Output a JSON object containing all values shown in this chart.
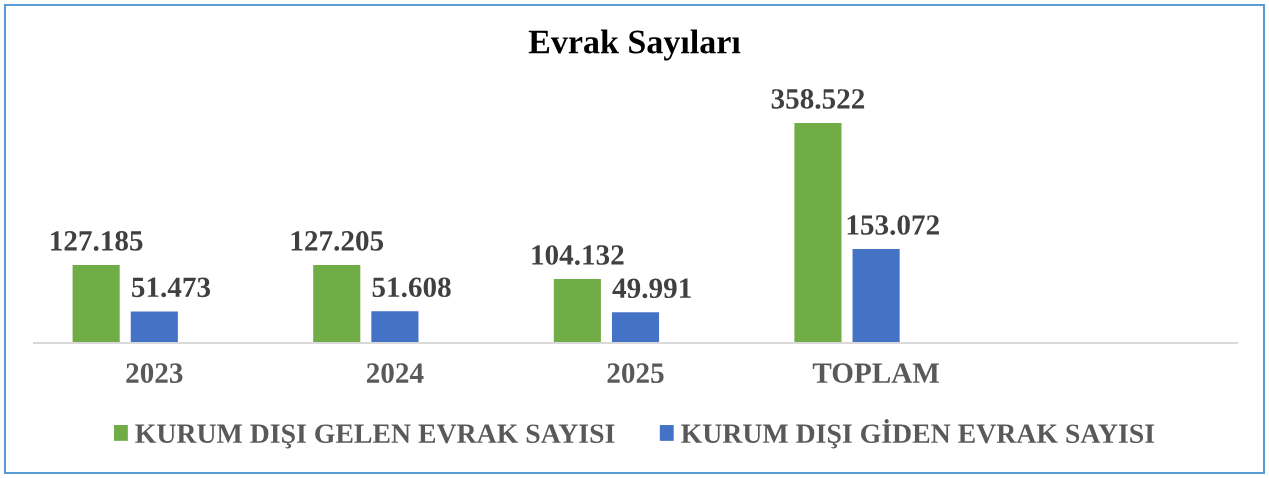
{
  "chart_data": {
    "type": "bar",
    "title": "Evrak Sayıları",
    "categories": [
      "2023",
      "2024",
      "2025",
      "TOPLAM",
      null
    ],
    "series": [
      {
        "name": "KURUM DIŞI GELEN EVRAK SAYISI",
        "color": "#70ad47",
        "values": [
          127185,
          127205,
          104132,
          358522,
          null
        ],
        "value_labels": [
          "127.185",
          "127.205",
          "104.132",
          "358.522",
          null
        ]
      },
      {
        "name": "KURUM DIŞI GİDEN EVRAK SAYISI",
        "color": "#4472c4",
        "values": [
          51473,
          51608,
          49991,
          153072,
          null
        ],
        "value_labels": [
          "51.473",
          "51.608",
          "49.991",
          "153.072",
          null
        ]
      }
    ],
    "tick_labels": "x",
    "legend": "bottom"
  }
}
